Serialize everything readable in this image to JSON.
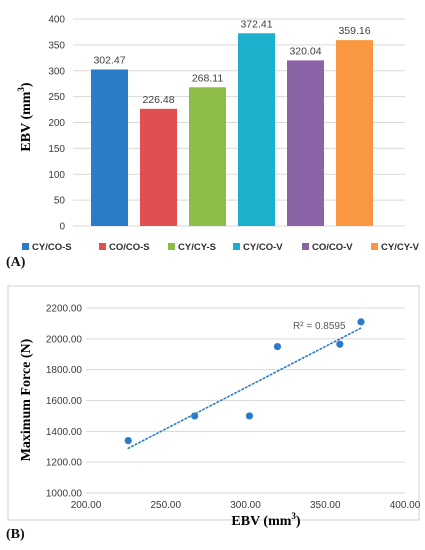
{
  "chart_data": [
    {
      "type": "bar",
      "panel_label": "(A)",
      "ylabel": "EBV (mm³)",
      "xlabel": "",
      "ylim": [
        0,
        400
      ],
      "yticks": [
        "0",
        "50",
        "100",
        "150",
        "200",
        "250",
        "300",
        "350",
        "400"
      ],
      "categories": [
        "CY/CO-S",
        "CO/CO-S",
        "CY/CY-S",
        "CY/CO-V",
        "CO/CO-V",
        "CY/CY-V"
      ],
      "values": [
        302.47,
        226.48,
        268.11,
        372.41,
        320.04,
        359.16
      ],
      "data_labels": [
        "302.47",
        "226.48",
        "268.11",
        "372.41",
        "320.04",
        "359.16"
      ],
      "colors": [
        "#2a7bc8",
        "#e05050",
        "#8fbd4a",
        "#1bb1cc",
        "#8b64a8",
        "#f99840"
      ],
      "grid": true,
      "legend_position": "bottom"
    },
    {
      "type": "scatter",
      "panel_label": "(B)",
      "xlabel": "EBV (mm³)",
      "ylabel": "Maximum Force (N)",
      "xlim": [
        200,
        400
      ],
      "ylim": [
        1000,
        2200
      ],
      "xticks": [
        "200.00",
        "250.00",
        "300.00",
        "350.00",
        "400.00"
      ],
      "yticks": [
        "1000.00",
        "1200.00",
        "1400.00",
        "1600.00",
        "1800.00",
        "2000.00",
        "2200.00"
      ],
      "points": [
        {
          "x": 226.48,
          "y": 1340
        },
        {
          "x": 268.11,
          "y": 1500
        },
        {
          "x": 302.47,
          "y": 1500
        },
        {
          "x": 320.04,
          "y": 1950
        },
        {
          "x": 359.16,
          "y": 1965
        },
        {
          "x": 372.41,
          "y": 2110
        }
      ],
      "trendline": {
        "type": "linear",
        "style": "dotted",
        "x_from": 226.48,
        "x_to": 372.41,
        "y_from": 1290,
        "y_to": 2070
      },
      "annotation": "R² = 0.8595",
      "point_color": "#2a7bc8",
      "grid": true
    }
  ]
}
